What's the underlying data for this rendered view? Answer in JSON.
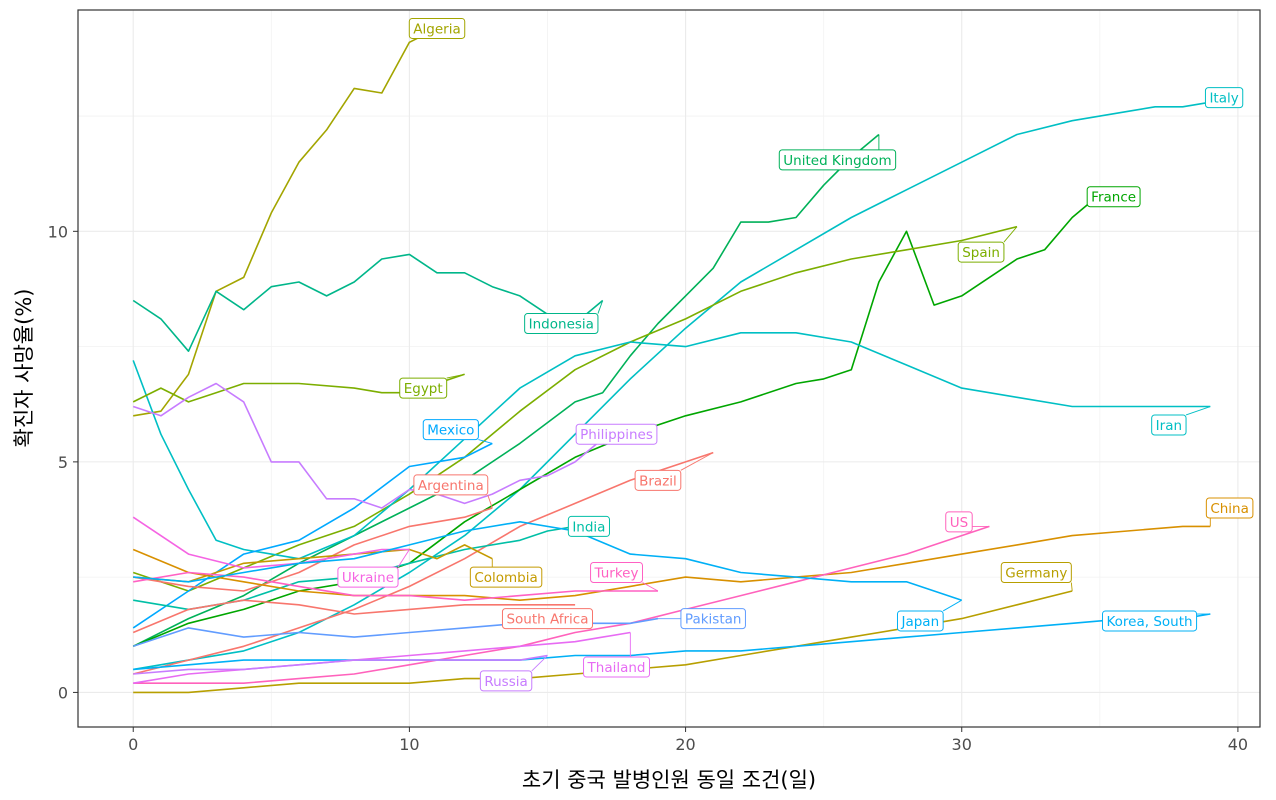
{
  "chart_data": {
    "type": "line",
    "xlabel": "초기 중국 발병인원 동일 조건(일)",
    "ylabel": "확진자 사망율(%)",
    "xlim": [
      -2,
      40.8
    ],
    "ylim": [
      -0.75,
      14.8
    ],
    "xticks": [
      0,
      10,
      20,
      30,
      40
    ],
    "yticks": [
      0,
      5,
      10
    ],
    "grid": true,
    "legend": "none",
    "series": [
      {
        "name": "Algeria",
        "color": "#A3A500",
        "label_at": [
          11,
          14.4
        ],
        "x": [
          0,
          1,
          2,
          3,
          4,
          5,
          6,
          7,
          8,
          9,
          10,
          11
        ],
        "y": [
          6.0,
          6.1,
          6.9,
          8.7,
          9.0,
          10.4,
          11.5,
          12.2,
          13.1,
          13.0,
          14.1,
          14.4
        ]
      },
      {
        "name": "Italy",
        "color": "#00BFC4",
        "label_at": [
          39.5,
          12.9
        ],
        "x": [
          0,
          2,
          4,
          6,
          8,
          10,
          12,
          14,
          16,
          18,
          20,
          22,
          24,
          26,
          28,
          30,
          32,
          34,
          36,
          37,
          38,
          39,
          40
        ],
        "y": [
          0.5,
          0.7,
          0.9,
          1.3,
          1.9,
          2.6,
          3.4,
          4.4,
          5.6,
          6.8,
          7.9,
          8.9,
          9.6,
          10.3,
          10.9,
          11.5,
          12.1,
          12.4,
          12.6,
          12.7,
          12.7,
          12.8,
          13.0
        ]
      },
      {
        "name": "United Kingdom",
        "color": "#00B159",
        "label_at": [
          25.5,
          11.55
        ],
        "x": [
          0,
          2,
          4,
          6,
          8,
          10,
          12,
          14,
          16,
          17,
          18,
          19,
          20,
          21,
          22,
          23,
          24,
          25,
          26,
          27
        ],
        "y": [
          1.0,
          1.6,
          2.1,
          2.8,
          3.4,
          4.0,
          4.6,
          5.4,
          6.3,
          6.5,
          7.3,
          8.0,
          8.6,
          9.2,
          10.2,
          10.2,
          10.3,
          11.0,
          11.6,
          12.1
        ]
      },
      {
        "name": "France",
        "color": "#00A600",
        "label_at": [
          35.5,
          10.75
        ],
        "x": [
          0,
          2,
          4,
          6,
          8,
          10,
          12,
          14,
          16,
          18,
          20,
          22,
          24,
          25,
          26,
          27,
          28,
          29,
          30,
          31,
          32,
          33,
          34,
          35
        ],
        "y": [
          1.0,
          1.5,
          1.8,
          2.2,
          2.4,
          2.8,
          3.7,
          4.4,
          5.1,
          5.6,
          6.0,
          6.3,
          6.7,
          6.8,
          7.0,
          8.9,
          10.0,
          8.4,
          8.6,
          9.0,
          9.4,
          9.6,
          10.3,
          10.8
        ]
      },
      {
        "name": "Spain",
        "color": "#7CAE00",
        "label_at": [
          30.7,
          9.55
        ],
        "x": [
          0,
          2,
          4,
          6,
          8,
          10,
          12,
          14,
          16,
          18,
          20,
          22,
          24,
          26,
          28,
          30,
          32
        ],
        "y": [
          2.6,
          2.2,
          2.7,
          3.2,
          3.6,
          4.3,
          5.1,
          6.1,
          7.0,
          7.6,
          8.1,
          8.7,
          9.1,
          9.4,
          9.6,
          9.8,
          10.1
        ]
      },
      {
        "name": "Indonesia",
        "color": "#00B68A",
        "label_at": [
          15.5,
          8.0
        ],
        "x": [
          0,
          1,
          2,
          3,
          4,
          5,
          6,
          7,
          8,
          9,
          10,
          11,
          12,
          13,
          14,
          15,
          16,
          17
        ],
        "y": [
          8.5,
          8.1,
          7.4,
          8.7,
          8.3,
          8.8,
          8.9,
          8.6,
          8.9,
          9.4,
          9.5,
          9.1,
          9.1,
          8.8,
          8.6,
          8.2,
          8.0,
          8.5
        ]
      },
      {
        "name": "Iran",
        "color": "#00BFC4",
        "label_at": [
          37.5,
          5.8
        ],
        "x": [
          0,
          1,
          2,
          3,
          4,
          5,
          6,
          8,
          10,
          12,
          14,
          16,
          18,
          20,
          22,
          24,
          26,
          28,
          30,
          32,
          34,
          36,
          38,
          39
        ],
        "y": [
          7.2,
          5.6,
          4.4,
          3.3,
          3.1,
          3.0,
          2.9,
          3.4,
          4.4,
          5.5,
          6.6,
          7.3,
          7.6,
          7.5,
          7.8,
          7.8,
          7.6,
          7.1,
          6.6,
          6.4,
          6.2,
          6.2,
          6.2,
          6.2
        ]
      },
      {
        "name": "Egypt",
        "color": "#7CAE00",
        "label_at": [
          10.5,
          6.6
        ],
        "x": [
          0,
          1,
          2,
          3,
          4,
          6,
          8,
          9,
          10,
          11,
          12
        ],
        "y": [
          6.3,
          6.6,
          6.3,
          6.5,
          6.7,
          6.7,
          6.6,
          6.5,
          6.5,
          6.7,
          6.9
        ]
      },
      {
        "name": "Mexico",
        "color": "#00A9FF",
        "label_at": [
          11.5,
          5.7
        ],
        "x": [
          0,
          2,
          4,
          6,
          8,
          10,
          12,
          13
        ],
        "y": [
          1.4,
          2.2,
          3.0,
          3.3,
          4.0,
          4.9,
          5.1,
          5.4
        ]
      },
      {
        "name": "Philippines",
        "color": "#C77CFF",
        "label_at": [
          17.5,
          5.6
        ],
        "x": [
          0,
          1,
          2,
          3,
          4,
          5,
          6,
          7,
          8,
          9,
          10,
          11,
          12,
          13,
          14,
          15,
          16,
          17
        ],
        "y": [
          6.2,
          6.0,
          6.4,
          6.7,
          6.3,
          5.0,
          5.0,
          4.2,
          4.2,
          4.0,
          4.4,
          4.3,
          4.1,
          4.3,
          4.6,
          4.7,
          5.0,
          5.5
        ]
      },
      {
        "name": "Brazil",
        "color": "#F8766D",
        "label_at": [
          19,
          4.6
        ],
        "x": [
          0,
          2,
          4,
          6,
          8,
          10,
          12,
          14,
          16,
          18,
          20,
          21
        ],
        "y": [
          0.4,
          0.7,
          1.0,
          1.4,
          1.8,
          2.3,
          2.9,
          3.6,
          4.1,
          4.6,
          5.0,
          5.2
        ]
      },
      {
        "name": "Argentina",
        "color": "#F8766D",
        "label_at": [
          11.5,
          4.5
        ],
        "x": [
          0,
          2,
          4,
          6,
          8,
          10,
          12,
          13
        ],
        "y": [
          2.5,
          2.3,
          2.2,
          2.6,
          3.2,
          3.6,
          3.8,
          4.0
        ]
      },
      {
        "name": "India",
        "color": "#00BFA6",
        "label_at": [
          16.5,
          3.6
        ],
        "x": [
          0,
          2,
          4,
          6,
          8,
          10,
          12,
          14,
          15,
          16
        ],
        "y": [
          2.0,
          1.8,
          2.0,
          2.4,
          2.5,
          2.8,
          3.1,
          3.3,
          3.5,
          3.6
        ]
      },
      {
        "name": "China",
        "color": "#D89000",
        "label_at": [
          39.7,
          4.0
        ],
        "x": [
          0,
          2,
          4,
          6,
          8,
          10,
          12,
          14,
          16,
          18,
          20,
          22,
          24,
          26,
          28,
          30,
          32,
          34,
          36,
          38,
          39
        ],
        "y": [
          3.1,
          2.6,
          2.4,
          2.2,
          2.1,
          2.1,
          2.1,
          2.0,
          2.1,
          2.3,
          2.5,
          2.4,
          2.5,
          2.6,
          2.8,
          3.0,
          3.2,
          3.4,
          3.5,
          3.6,
          3.6
        ]
      },
      {
        "name": "US",
        "color": "#FF62BC",
        "label_at": [
          29.9,
          3.7
        ],
        "x": [
          0,
          2,
          4,
          6,
          8,
          10,
          12,
          14,
          16,
          18,
          20,
          22,
          24,
          26,
          28,
          30,
          31
        ],
        "y": [
          0.2,
          0.2,
          0.2,
          0.3,
          0.4,
          0.6,
          0.8,
          1.0,
          1.3,
          1.5,
          1.8,
          2.1,
          2.4,
          2.7,
          3.0,
          3.4,
          3.6
        ]
      },
      {
        "name": "Colombia",
        "color": "#C49A00",
        "label_at": [
          13.5,
          2.5
        ],
        "x": [
          0,
          2,
          4,
          6,
          8,
          10,
          11,
          12,
          13
        ],
        "y": [
          2.5,
          2.4,
          2.8,
          2.9,
          3.0,
          3.1,
          2.9,
          3.2,
          2.9
        ]
      },
      {
        "name": "Ukraine",
        "color": "#F564E3",
        "label_at": [
          8.5,
          2.5
        ],
        "x": [
          0,
          2,
          4,
          6,
          8,
          9,
          10
        ],
        "y": [
          3.8,
          3.0,
          2.7,
          2.8,
          3.0,
          3.1,
          3.1
        ]
      },
      {
        "name": "Turkey",
        "color": "#FF61C3",
        "label_at": [
          17.5,
          2.6
        ],
        "x": [
          0,
          2,
          4,
          6,
          8,
          10,
          12,
          14,
          16,
          18,
          19
        ],
        "y": [
          2.4,
          2.6,
          2.5,
          2.3,
          2.1,
          2.1,
          2.0,
          2.1,
          2.2,
          2.2,
          2.2
        ]
      },
      {
        "name": "Germany",
        "color": "#B79F00",
        "label_at": [
          32.7,
          2.6
        ],
        "x": [
          0,
          2,
          4,
          6,
          8,
          10,
          12,
          14,
          16,
          18,
          20,
          22,
          24,
          26,
          28,
          30,
          32,
          34
        ],
        "y": [
          0.0,
          0.0,
          0.1,
          0.2,
          0.2,
          0.2,
          0.3,
          0.3,
          0.4,
          0.5,
          0.6,
          0.8,
          1.0,
          1.2,
          1.4,
          1.6,
          1.9,
          2.2
        ]
      },
      {
        "name": "Pakistan",
        "color": "#619CFF",
        "label_at": [
          21,
          1.6
        ],
        "x": [
          0,
          2,
          4,
          6,
          8,
          10,
          12,
          14,
          16,
          18,
          19
        ],
        "y": [
          1.0,
          1.4,
          1.2,
          1.3,
          1.2,
          1.3,
          1.4,
          1.5,
          1.5,
          1.5,
          1.6
        ]
      },
      {
        "name": "South Africa",
        "color": "#F8766D",
        "label_at": [
          15,
          1.6
        ],
        "x": [
          0,
          2,
          4,
          6,
          8,
          10,
          12,
          14,
          15,
          16
        ],
        "y": [
          1.3,
          1.8,
          2.0,
          1.9,
          1.7,
          1.8,
          1.9,
          1.9,
          1.9,
          1.9
        ]
      },
      {
        "name": "Japan",
        "color": "#00B0F6",
        "label_at": [
          28.5,
          1.55
        ],
        "x": [
          0,
          2,
          4,
          6,
          8,
          10,
          12,
          14,
          16,
          18,
          20,
          22,
          24,
          26,
          28,
          30
        ],
        "y": [
          2.5,
          2.4,
          2.6,
          2.8,
          2.9,
          3.2,
          3.5,
          3.7,
          3.5,
          3.0,
          2.9,
          2.6,
          2.5,
          2.4,
          2.4,
          2.0
        ]
      },
      {
        "name": "Korea, South",
        "color": "#00B0F6",
        "label_at": [
          36.8,
          1.55
        ],
        "x": [
          0,
          2,
          4,
          6,
          8,
          10,
          12,
          14,
          16,
          18,
          20,
          22,
          24,
          26,
          28,
          30,
          32,
          34,
          36,
          38,
          39
        ],
        "y": [
          0.5,
          0.6,
          0.7,
          0.7,
          0.7,
          0.7,
          0.7,
          0.7,
          0.8,
          0.8,
          0.9,
          0.9,
          1.0,
          1.1,
          1.2,
          1.3,
          1.4,
          1.5,
          1.6,
          1.6,
          1.7
        ]
      },
      {
        "name": "Thailand",
        "color": "#E76BF3",
        "label_at": [
          17.5,
          0.55
        ],
        "x": [
          0,
          2,
          4,
          6,
          8,
          10,
          12,
          14,
          16,
          17,
          18
        ],
        "y": [
          0.2,
          0.4,
          0.5,
          0.6,
          0.7,
          0.8,
          0.9,
          1.0,
          1.1,
          1.2,
          1.3
        ]
      },
      {
        "name": "Russia",
        "color": "#C77CFF",
        "label_at": [
          13.5,
          0.25
        ],
        "x": [
          0,
          2,
          4,
          6,
          8,
          10,
          12,
          14,
          15
        ],
        "y": [
          0.4,
          0.5,
          0.5,
          0.6,
          0.7,
          0.7,
          0.7,
          0.7,
          0.8
        ]
      }
    ]
  }
}
